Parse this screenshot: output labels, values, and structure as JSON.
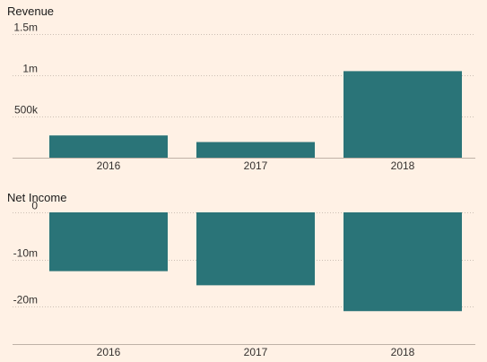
{
  "chart_data": [
    {
      "type": "bar",
      "title": "Revenue",
      "categories": [
        "2016",
        "2017",
        "2018"
      ],
      "values": [
        270000,
        190000,
        1050000
      ],
      "ylim": [
        0,
        1500000
      ],
      "yticks": [
        {
          "value": 500000,
          "label": "500k"
        },
        {
          "value": 1000000,
          "label": "1m"
        },
        {
          "value": 1500000,
          "label": "1.5m"
        }
      ],
      "grid": true,
      "bar_color": "#2a7478"
    },
    {
      "type": "bar",
      "title": "Net Income",
      "categories": [
        "2016",
        "2017",
        "2018"
      ],
      "values": [
        -12500000,
        -15500000,
        -21000000
      ],
      "ylim": [
        -28000000,
        0
      ],
      "yticks": [
        {
          "value": 0,
          "label": "0"
        },
        {
          "value": -10000000,
          "label": "-10m"
        },
        {
          "value": -20000000,
          "label": "-20m"
        }
      ],
      "grid": true,
      "bar_color": "#2a7478"
    }
  ],
  "colors": {
    "background": "#fff1e5",
    "bar": "#2a7478"
  }
}
